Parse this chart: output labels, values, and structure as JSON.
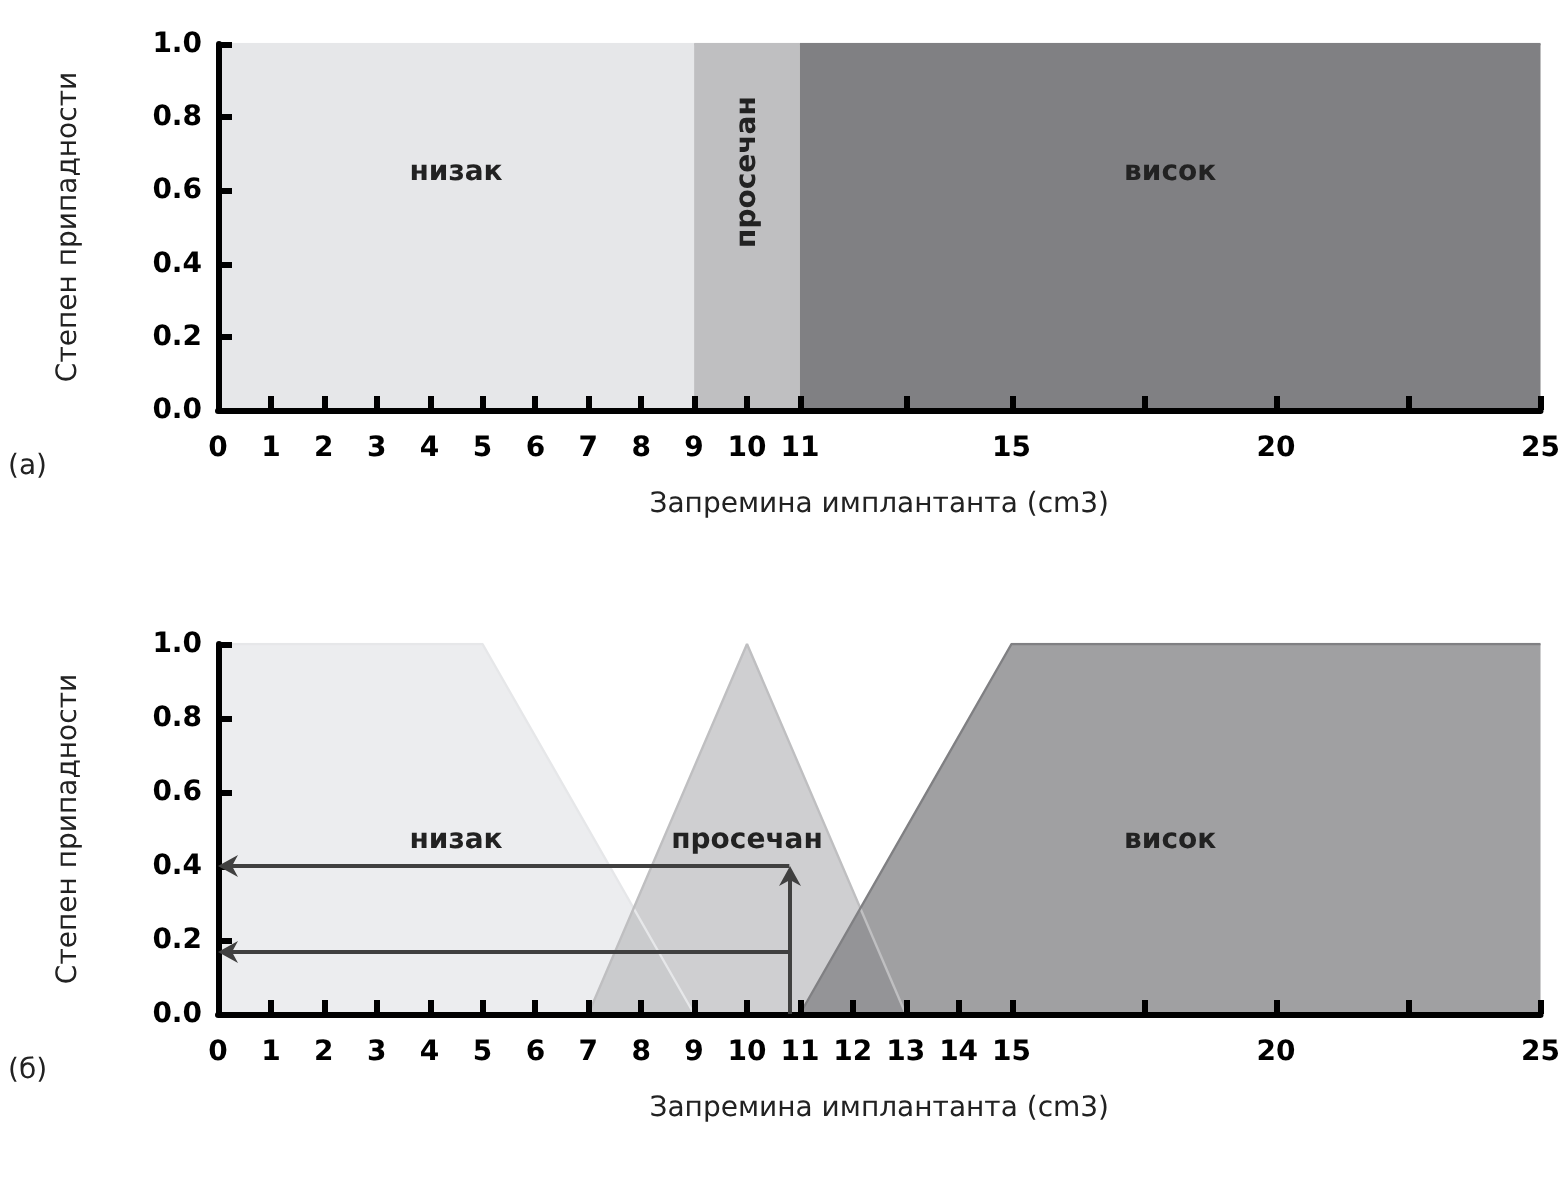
{
  "chart_data": [
    {
      "type": "area",
      "xlabel": "Запремина имплантанта (cm3)",
      "ylabel": "Степен припадности",
      "annotations": [
        "(a)"
      ],
      "xlim": [
        0,
        25
      ],
      "ylim": [
        0,
        1.0
      ],
      "xticks": [
        0,
        1,
        2,
        3,
        4,
        5,
        6,
        7,
        8,
        9,
        10,
        11,
        {
          "value": 13,
          "label": null
        },
        15,
        {
          "value": 17.5,
          "label": null
        },
        20,
        {
          "value": 22.5,
          "label": null
        },
        25
      ],
      "yticks": [
        {
          "value": 0,
          "label": "0.0"
        },
        {
          "value": 0.2,
          "label": "0.2"
        },
        {
          "value": 0.4,
          "label": "0.4"
        },
        {
          "value": 0.6,
          "label": "0.6"
        },
        {
          "value": 0.8,
          "label": "0.8"
        },
        {
          "value": 1,
          "label": "1.0"
        }
      ],
      "grid": false,
      "legend": false,
      "series": [
        {
          "name": "низак",
          "color": "#e6e7e9",
          "x": [
            0,
            9
          ],
          "values": [
            1,
            1
          ]
        },
        {
          "name": "просечан",
          "color": "#bfbfc1",
          "x": [
            9,
            11
          ],
          "values": [
            1,
            1
          ]
        },
        {
          "name": "висок",
          "color": "#808083",
          "x": [
            11,
            25
          ],
          "values": [
            1,
            1
          ]
        }
      ]
    },
    {
      "type": "area",
      "xlabel": "Запремина имплантанта (cm3)",
      "ylabel": "Степен припадности",
      "annotations": [
        "(б)"
      ],
      "xlim": [
        0,
        25
      ],
      "ylim": [
        0,
        1.0
      ],
      "xticks": [
        0,
        1,
        2,
        3,
        4,
        5,
        6,
        7,
        8,
        9,
        10,
        11,
        12,
        13,
        14,
        15,
        {
          "value": 17.5,
          "label": null
        },
        20,
        {
          "value": 22.5,
          "label": null
        },
        25
      ],
      "yticks": [
        {
          "value": 0,
          "label": "0.0"
        },
        {
          "value": 0.2,
          "label": "0.2"
        },
        {
          "value": 0.4,
          "label": "0.4"
        },
        {
          "value": 0.6,
          "label": "0.6"
        },
        {
          "value": 0.8,
          "label": "0.8"
        },
        {
          "value": 1,
          "label": "1.0"
        }
      ],
      "grid": false,
      "legend": false,
      "series": [
        {
          "name": "низак",
          "color": "#e6e7e9",
          "x": [
            0,
            5,
            9
          ],
          "values": [
            1,
            1,
            0
          ]
        },
        {
          "name": "просечан",
          "color": "#bfbfc1",
          "x": [
            7,
            10,
            13
          ],
          "values": [
            0,
            1,
            0
          ]
        },
        {
          "name": "висок",
          "color": "#808083",
          "x": [
            11,
            15,
            25
          ],
          "values": [
            0,
            1,
            1
          ]
        }
      ]
    }
  ]
}
